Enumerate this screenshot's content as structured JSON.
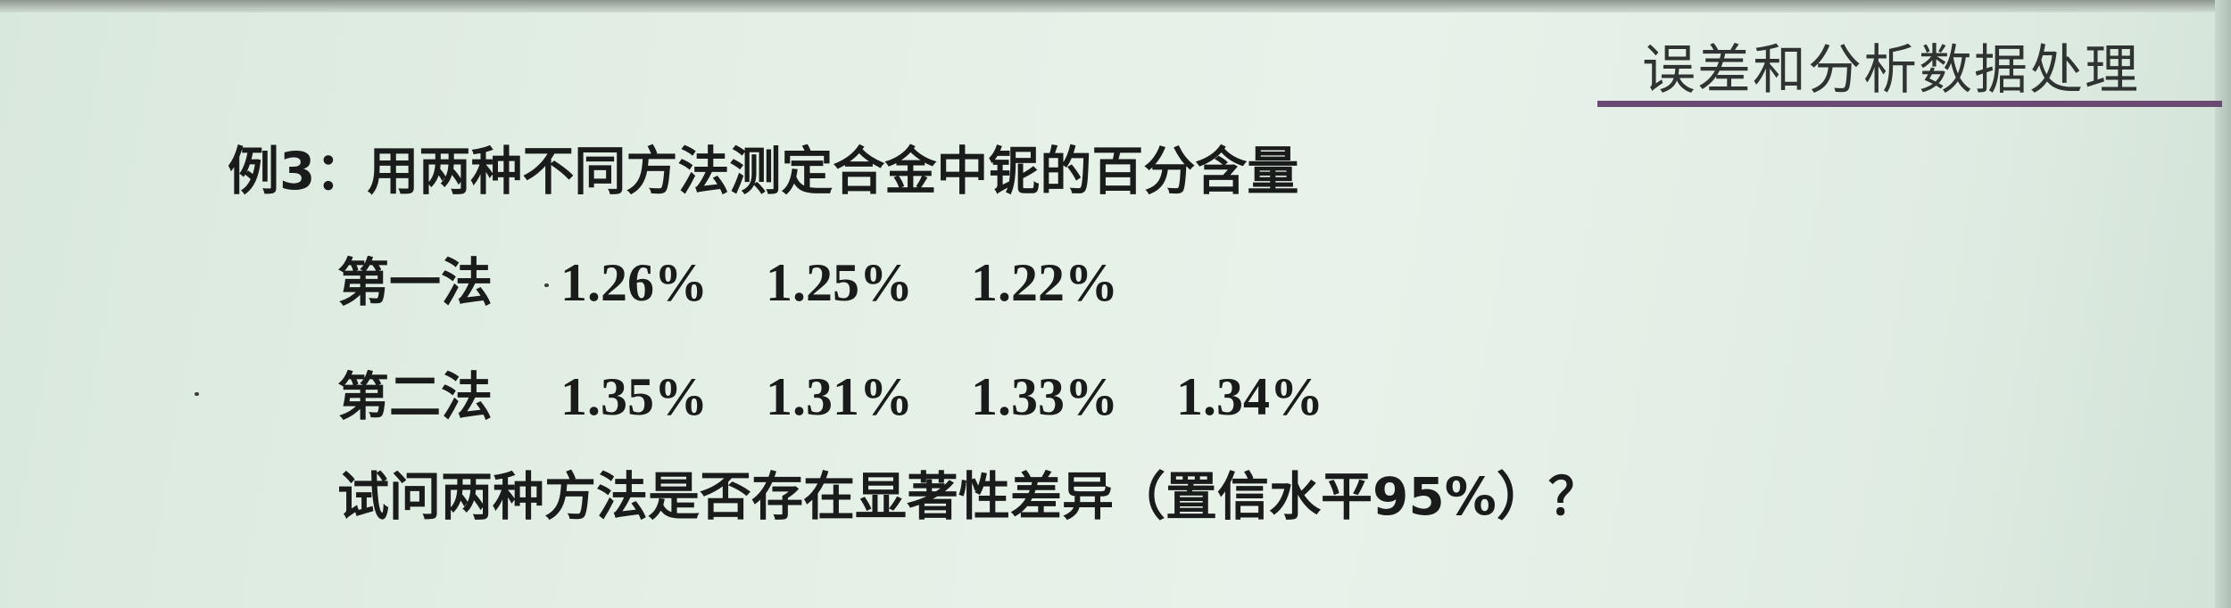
{
  "header": {
    "title": "误差和分析数据处理"
  },
  "example": {
    "title": "例3：用两种不同方法测定合金中铌的百分含量",
    "method1": {
      "label": "第一法",
      "values": [
        "1.26%",
        "1.25%",
        "1.22%"
      ]
    },
    "method2": {
      "label": "第二法",
      "values": [
        "1.35%",
        "1.31%",
        "1.33%",
        "1.34%"
      ]
    },
    "question": "试问两种方法是否存在显著性差异（置信水平95%）？"
  }
}
